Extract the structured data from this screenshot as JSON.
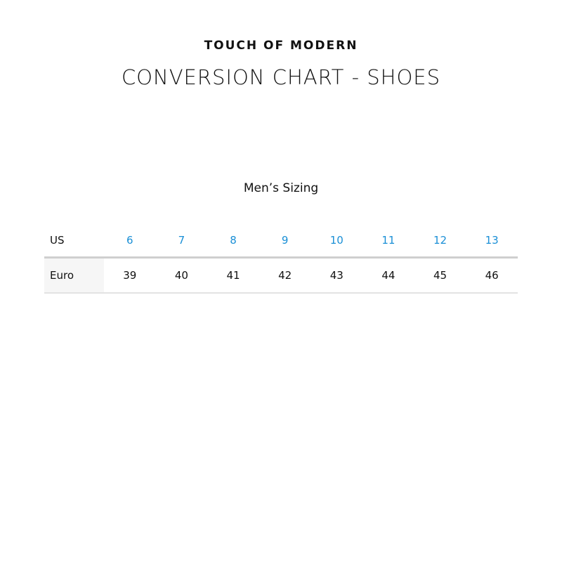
{
  "brand": "TOUCH OF MODERN",
  "title": "CONVERSION CHART - SHOES",
  "subtitle": "Men’s Sizing",
  "colors": {
    "us_size_text": "#1a8fd6"
  },
  "table": {
    "rows": [
      {
        "label": "US",
        "values": [
          "6",
          "7",
          "8",
          "9",
          "10",
          "11",
          "12",
          "13"
        ]
      },
      {
        "label": "Euro",
        "values": [
          "39",
          "40",
          "41",
          "42",
          "43",
          "44",
          "45",
          "46"
        ]
      }
    ]
  }
}
